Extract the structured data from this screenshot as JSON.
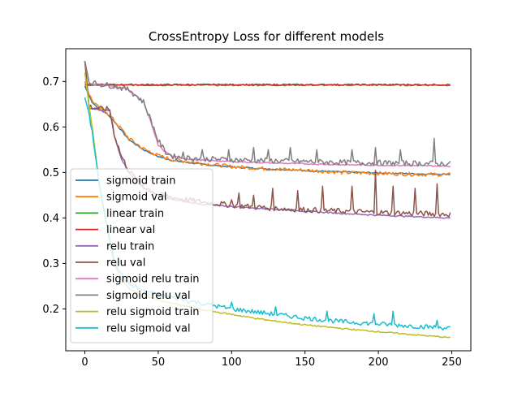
{
  "chart_data": {
    "type": "line",
    "title": "CrossEntropy Loss for different models",
    "xlabel": "",
    "ylabel": "",
    "xlim": [
      -13,
      263
    ],
    "ylim": [
      0.108,
      0.772
    ],
    "xticks": [
      0,
      50,
      100,
      150,
      200,
      250
    ],
    "yticks": [
      0.2,
      0.3,
      0.4,
      0.5,
      0.6,
      0.7
    ],
    "grid": false,
    "legend_placement": "center-left",
    "series": [
      {
        "name": "sigmoid train",
        "color": "#1f77b4",
        "x": [
          0,
          2,
          5,
          10,
          15,
          20,
          25,
          30,
          40,
          50,
          60,
          80,
          100,
          125,
          150,
          175,
          200,
          225,
          249
        ],
        "y": [
          0.69,
          0.675,
          0.655,
          0.638,
          0.63,
          0.612,
          0.592,
          0.572,
          0.55,
          0.535,
          0.526,
          0.518,
          0.512,
          0.508,
          0.504,
          0.501,
          0.499,
          0.497,
          0.496
        ]
      },
      {
        "name": "sigmoid val",
        "color": "#ff7f0e",
        "x": [
          0,
          2,
          5,
          10,
          15,
          20,
          25,
          30,
          40,
          50,
          60,
          80,
          100,
          125,
          150,
          175,
          200,
          225,
          249
        ],
        "y": [
          0.7,
          0.68,
          0.658,
          0.64,
          0.632,
          0.614,
          0.595,
          0.575,
          0.552,
          0.537,
          0.528,
          0.52,
          0.513,
          0.508,
          0.505,
          0.5,
          0.498,
          0.496,
          0.495
        ],
        "noise": 0.004
      },
      {
        "name": "linear train",
        "color": "#2ca02c",
        "x": [
          0,
          50,
          100,
          150,
          200,
          249
        ],
        "y": [
          0.692,
          0.692,
          0.692,
          0.692,
          0.692,
          0.692
        ]
      },
      {
        "name": "linear val",
        "color": "#d62728",
        "x": [
          0,
          50,
          100,
          150,
          200,
          249
        ],
        "y": [
          0.693,
          0.693,
          0.693,
          0.693,
          0.693,
          0.693
        ]
      },
      {
        "name": "relu train",
        "color": "#9467bd",
        "x": [
          0,
          3,
          10,
          17,
          20,
          25,
          30,
          35,
          40,
          50,
          60,
          80,
          100,
          125,
          150,
          175,
          200,
          225,
          249
        ],
        "y": [
          0.745,
          0.64,
          0.637,
          0.636,
          0.58,
          0.53,
          0.5,
          0.48,
          0.465,
          0.45,
          0.44,
          0.43,
          0.425,
          0.42,
          0.415,
          0.41,
          0.406,
          0.403,
          0.4
        ]
      },
      {
        "name": "relu val",
        "color": "#8c564b",
        "x": [
          0,
          3,
          10,
          17,
          20,
          25,
          30,
          35,
          40,
          50,
          60,
          80,
          100,
          125,
          150,
          175,
          200,
          225,
          249
        ],
        "y": [
          0.745,
          0.645,
          0.64,
          0.639,
          0.585,
          0.535,
          0.505,
          0.485,
          0.47,
          0.452,
          0.445,
          0.435,
          0.428,
          0.422,
          0.418,
          0.415,
          0.412,
          0.41,
          0.408
        ],
        "noise": 0.006,
        "spikes": [
          [
            100,
            0.44
          ],
          [
            105,
            0.455
          ],
          [
            115,
            0.45
          ],
          [
            128,
            0.465
          ],
          [
            145,
            0.46
          ],
          [
            162,
            0.47
          ],
          [
            182,
            0.47
          ],
          [
            198,
            0.505
          ],
          [
            210,
            0.47
          ],
          [
            225,
            0.465
          ],
          [
            240,
            0.475
          ]
        ]
      },
      {
        "name": "sigmoid relu train",
        "color": "#e377c2",
        "x": [
          0,
          3,
          10,
          20,
          30,
          40,
          45,
          50,
          55,
          60,
          70,
          80,
          100,
          125,
          150,
          175,
          200,
          225,
          249
        ],
        "y": [
          0.745,
          0.695,
          0.692,
          0.69,
          0.682,
          0.655,
          0.61,
          0.56,
          0.545,
          0.535,
          0.53,
          0.527,
          0.524,
          0.521,
          0.519,
          0.517,
          0.516,
          0.515,
          0.514
        ]
      },
      {
        "name": "sigmoid relu val",
        "color": "#7f7f7f",
        "x": [
          0,
          3,
          10,
          20,
          30,
          40,
          45,
          50,
          55,
          60,
          70,
          80,
          100,
          125,
          150,
          175,
          200,
          225,
          249
        ],
        "y": [
          0.745,
          0.698,
          0.694,
          0.69,
          0.682,
          0.655,
          0.615,
          0.57,
          0.545,
          0.535,
          0.532,
          0.53,
          0.528,
          0.526,
          0.524,
          0.522,
          0.521,
          0.52,
          0.519
        ],
        "noise": 0.006,
        "spikes": [
          [
            67,
            0.545
          ],
          [
            80,
            0.55
          ],
          [
            98,
            0.55
          ],
          [
            115,
            0.555
          ],
          [
            125,
            0.55
          ],
          [
            140,
            0.555
          ],
          [
            158,
            0.55
          ],
          [
            182,
            0.55
          ],
          [
            198,
            0.555
          ],
          [
            215,
            0.55
          ],
          [
            238,
            0.575
          ]
        ]
      },
      {
        "name": "relu sigmoid train",
        "color": "#bcbd22",
        "x": [
          0,
          2,
          5,
          10,
          15,
          20,
          25,
          30,
          40,
          50,
          60,
          70,
          80,
          100,
          125,
          150,
          175,
          200,
          225,
          249
        ],
        "y": [
          0.72,
          0.67,
          0.6,
          0.47,
          0.38,
          0.3,
          0.265,
          0.245,
          0.23,
          0.22,
          0.212,
          0.205,
          0.198,
          0.188,
          0.175,
          0.165,
          0.157,
          0.15,
          0.143,
          0.137
        ]
      },
      {
        "name": "relu sigmoid val",
        "color": "#17becf",
        "x": [
          0,
          2,
          5,
          10,
          15,
          20,
          25,
          30,
          40,
          50,
          60,
          70,
          80,
          100,
          125,
          150,
          175,
          200,
          225,
          249
        ],
        "y": [
          0.665,
          0.64,
          0.59,
          0.47,
          0.385,
          0.31,
          0.275,
          0.255,
          0.24,
          0.232,
          0.225,
          0.218,
          0.212,
          0.2,
          0.19,
          0.18,
          0.172,
          0.167,
          0.162,
          0.158
        ],
        "noise": 0.005,
        "spikes": [
          [
            100,
            0.215
          ],
          [
            130,
            0.205
          ],
          [
            165,
            0.195
          ],
          [
            197,
            0.19
          ],
          [
            210,
            0.195
          ],
          [
            240,
            0.175
          ]
        ]
      }
    ]
  }
}
